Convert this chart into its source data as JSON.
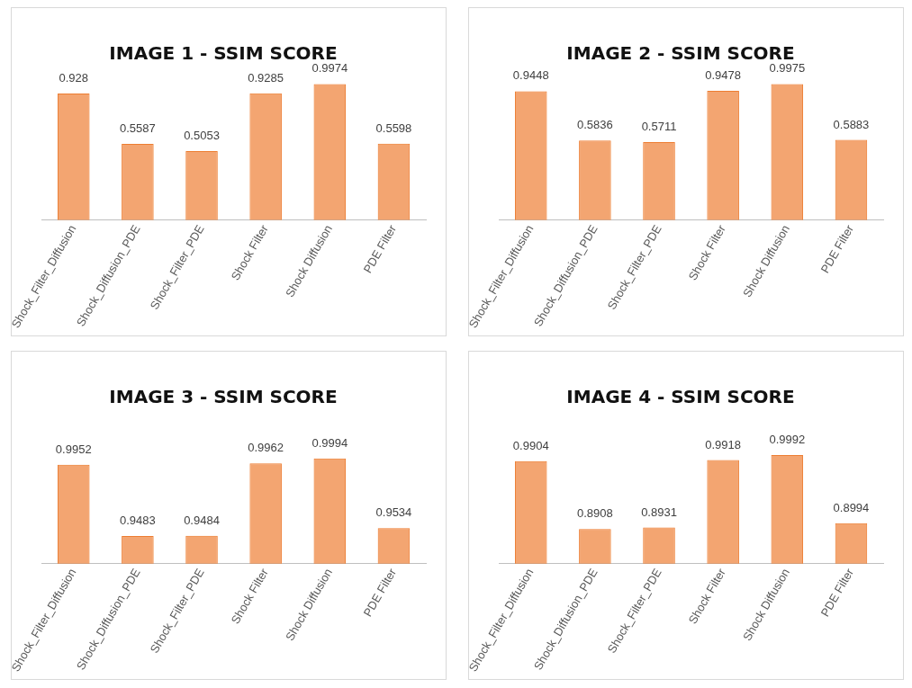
{
  "chart_data": [
    {
      "type": "bar",
      "title": "IMAGE 1 - SSIM SCORE",
      "categories": [
        "Shock_Filter_Diffusion",
        "Shock_Diffusion_PDE",
        "Shock_Filter_PDE",
        "Shock Filter",
        "Shock Diffusion",
        "PDE Filter"
      ],
      "values": [
        0.928,
        0.5587,
        0.5053,
        0.9285,
        0.9974,
        0.5598
      ],
      "color": "#ed7d31",
      "tick_labels": "x",
      "data_labels": true,
      "grid": false,
      "legend": false
    },
    {
      "type": "bar",
      "title": "IMAGE 2 - SSIM SCORE",
      "categories": [
        "Shock_Filter_Diffusion",
        "Shock_Diffusion_PDE",
        "Shock_Filter_PDE",
        "Shock Filter",
        "Shock Diffusion",
        "PDE Filter"
      ],
      "values": [
        0.9448,
        0.5836,
        0.5711,
        0.9478,
        0.9975,
        0.5883
      ],
      "color": "#ed7d31",
      "tick_labels": "x",
      "data_labels": true,
      "grid": false,
      "legend": false
    },
    {
      "type": "bar",
      "title": "IMAGE 3 - SSIM SCORE",
      "categories": [
        "Shock_Filter_Diffusion",
        "Shock_Diffusion_PDE",
        "Shock_Filter_PDE",
        "Shock Filter",
        "Shock Diffusion",
        "PDE Filter"
      ],
      "values": [
        0.9952,
        0.9483,
        0.9484,
        0.9962,
        0.9994,
        0.9534
      ],
      "color": "#ed7d31",
      "tick_labels": "x",
      "data_labels": true,
      "grid": false,
      "legend": false
    },
    {
      "type": "bar",
      "title": "IMAGE 4 - SSIM SCORE",
      "categories": [
        "Shock_Filter_Diffusion",
        "Shock_Diffusion_PDE",
        "Shock_Filter_PDE",
        "Shock Filter",
        "Shock Diffusion",
        "PDE Filter"
      ],
      "values": [
        0.9904,
        0.8908,
        0.8931,
        0.9918,
        0.9992,
        0.8994
      ],
      "color": "#ed7d31",
      "tick_labels": "x",
      "data_labels": true,
      "grid": false,
      "legend": false
    }
  ]
}
